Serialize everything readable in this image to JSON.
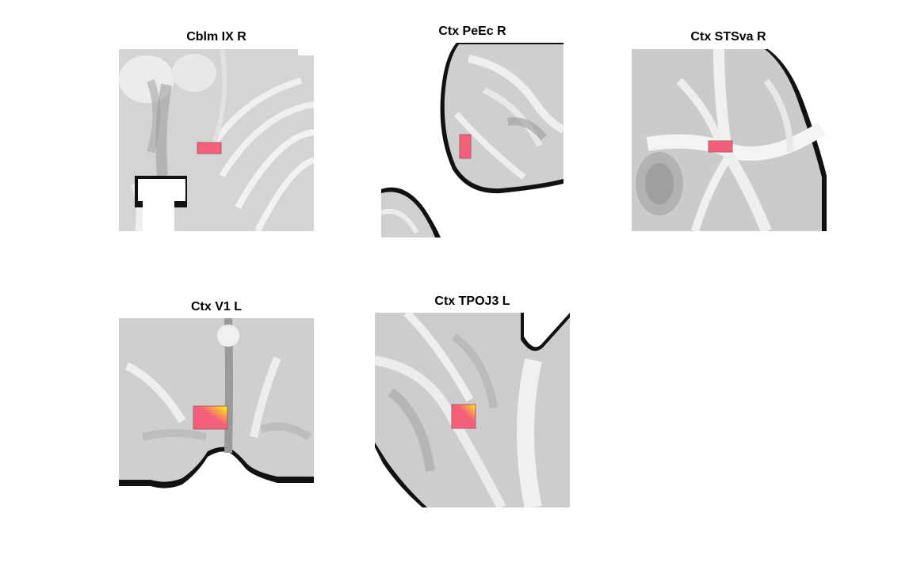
{
  "panels": [
    {
      "title": "Cblm IX R",
      "highlight": "pink"
    },
    {
      "title": "Ctx PeEc R",
      "highlight": "pink"
    },
    {
      "title": "Ctx STSva R",
      "highlight": "pink"
    },
    {
      "title": "Ctx V1 L",
      "highlight": "pink-to-yellow"
    },
    {
      "title": "Ctx TPOJ3 L",
      "highlight": "pink-to-yellow"
    }
  ],
  "colors": {
    "highlight_pink": "#f4607a",
    "highlight_yellow": "#ffff00"
  }
}
